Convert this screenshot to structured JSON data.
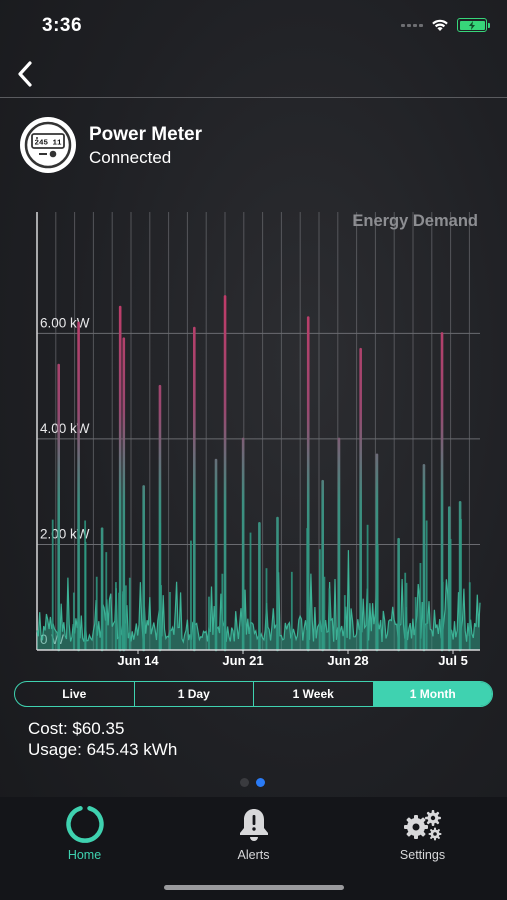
{
  "status_bar": {
    "time": "3:36",
    "battery_charging": true
  },
  "nav": {
    "back_icon": "chevron-left-icon"
  },
  "device": {
    "name": "Power Meter",
    "status": "Connected",
    "meter_readout": "245 11",
    "icon": "power-meter-icon"
  },
  "chart_data": {
    "type": "bar",
    "title": "Energy Demand",
    "xlabel": "",
    "ylabel": "",
    "y_unit": "kW",
    "ylim": [
      0,
      8.3
    ],
    "y_ticks": [
      {
        "value": 0,
        "label": "0 W"
      },
      {
        "value": 2,
        "label": "2.00 kW"
      },
      {
        "value": 4,
        "label": "4.00 kW"
      },
      {
        "value": 6,
        "label": "6.00 kW"
      }
    ],
    "x_ticks": [
      "Jun 14",
      "Jun 21",
      "Jun 28",
      "Jul 5"
    ],
    "grid": true,
    "colors": {
      "low": "#2f9a83",
      "high": "#c63a68",
      "grid": "#6a6b70"
    },
    "peaks": [
      {
        "day": 1.2,
        "kw": 5.4
      },
      {
        "day": 2.3,
        "kw": 6.2
      },
      {
        "day": 3.6,
        "kw": 2.3
      },
      {
        "day": 4.6,
        "kw": 6.5
      },
      {
        "day": 4.8,
        "kw": 5.9
      },
      {
        "day": 5.9,
        "kw": 3.1
      },
      {
        "day": 6.8,
        "kw": 5.0
      },
      {
        "day": 8.7,
        "kw": 6.1
      },
      {
        "day": 9.9,
        "kw": 3.6
      },
      {
        "day": 10.4,
        "kw": 6.7
      },
      {
        "day": 11.4,
        "kw": 4.0
      },
      {
        "day": 12.3,
        "kw": 2.4
      },
      {
        "day": 13.3,
        "kw": 2.5
      },
      {
        "day": 15.0,
        "kw": 6.3
      },
      {
        "day": 15.8,
        "kw": 3.2
      },
      {
        "day": 16.7,
        "kw": 4.0
      },
      {
        "day": 17.9,
        "kw": 5.7
      },
      {
        "day": 18.8,
        "kw": 3.7
      },
      {
        "day": 20.0,
        "kw": 2.1
      },
      {
        "day": 21.4,
        "kw": 3.5
      },
      {
        "day": 22.4,
        "kw": 6.0
      },
      {
        "day": 22.8,
        "kw": 2.7
      },
      {
        "day": 23.4,
        "kw": 2.8
      }
    ]
  },
  "range_selector": {
    "tabs": [
      "Live",
      "1 Day",
      "1 Week",
      "1 Month"
    ],
    "active_index": 3
  },
  "summary": {
    "cost": "Cost: $60.35",
    "usage": "Usage: 645.43 kWh"
  },
  "pager": {
    "count": 2,
    "active_index": 1
  },
  "tab_bar": {
    "home": {
      "label": "Home",
      "icon": "home-ring-icon"
    },
    "alerts": {
      "label": "Alerts",
      "icon": "bell-alert-icon"
    },
    "settings": {
      "label": "Settings",
      "icon": "gears-icon"
    }
  },
  "accent_color": "#3fd2b0"
}
